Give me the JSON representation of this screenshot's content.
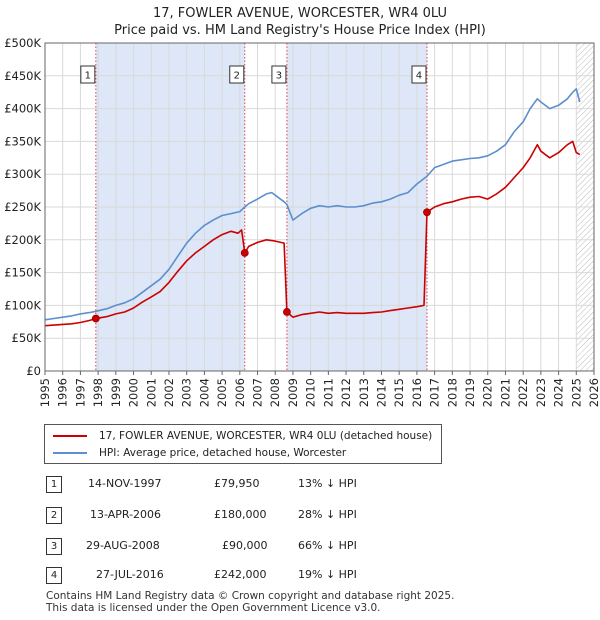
{
  "title_line1": "17, FOWLER AVENUE, WORCESTER, WR4 0LU",
  "title_line2": "Price paid vs. HM Land Registry's House Price Index (HPI)",
  "legend": [
    {
      "label": "17, FOWLER AVENUE, WORCESTER, WR4 0LU (detached house)",
      "color": "#cc0000"
    },
    {
      "label": "HPI: Average price, detached house, Worcester",
      "color": "#5b8fcf"
    }
  ],
  "transactions": [
    {
      "num": "1",
      "date": "14-NOV-1997",
      "price": "£79,950",
      "hpi": "13% ↓ HPI"
    },
    {
      "num": "2",
      "date": "13-APR-2006",
      "price": "£180,000",
      "hpi": "28% ↓ HPI"
    },
    {
      "num": "3",
      "date": "29-AUG-2008",
      "price": "£90,000",
      "hpi": "66% ↓ HPI"
    },
    {
      "num": "4",
      "date": "27-JUL-2016",
      "price": "£242,000",
      "hpi": "19% ↓ HPI"
    }
  ],
  "footer_line1": "Contains HM Land Registry data © Crown copyright and database right 2025.",
  "footer_line2": "This data is licensed under the Open Government Licence v3.0.",
  "chart_data": {
    "type": "line",
    "xlim": [
      1995,
      2026
    ],
    "ylim": [
      0,
      500000
    ],
    "y_ticks": [
      {
        "v": 0,
        "label": "£0"
      },
      {
        "v": 50000,
        "label": "£50K"
      },
      {
        "v": 100000,
        "label": "£100K"
      },
      {
        "v": 150000,
        "label": "£150K"
      },
      {
        "v": 200000,
        "label": "£200K"
      },
      {
        "v": 250000,
        "label": "£250K"
      },
      {
        "v": 300000,
        "label": "£300K"
      },
      {
        "v": 350000,
        "label": "£350K"
      },
      {
        "v": 400000,
        "label": "£400K"
      },
      {
        "v": 450000,
        "label": "£450K"
      },
      {
        "v": 500000,
        "label": "£500K"
      }
    ],
    "x_ticks": [
      "1995",
      "1996",
      "1997",
      "1998",
      "1999",
      "2000",
      "2001",
      "2002",
      "2003",
      "2004",
      "2005",
      "2006",
      "2007",
      "2008",
      "2009",
      "2010",
      "2011",
      "2012",
      "2013",
      "2014",
      "2015",
      "2016",
      "2017",
      "2018",
      "2019",
      "2020",
      "2021",
      "2022",
      "2023",
      "2024",
      "2025",
      "2026"
    ],
    "shaded_periods": [
      [
        1997.87,
        2006.28
      ],
      [
        2008.66,
        2016.57
      ]
    ],
    "future_hatch_start": 2025.0,
    "markers": [
      {
        "label": "1",
        "x": 1997.87,
        "y": 79950
      },
      {
        "label": "2",
        "x": 2006.28,
        "y": 180000
      },
      {
        "label": "3",
        "x": 2008.66,
        "y": 90000
      },
      {
        "label": "4",
        "x": 2016.57,
        "y": 242000
      }
    ],
    "series": [
      {
        "name": "HPI: Average price, detached house, Worcester",
        "color": "#5b8fcf",
        "x": [
          1995.0,
          1995.5,
          1996.0,
          1996.5,
          1997.0,
          1997.5,
          1997.87,
          1998.5,
          1999.0,
          1999.5,
          2000.0,
          2000.5,
          2001.0,
          2001.5,
          2002.0,
          2002.5,
          2003.0,
          2003.5,
          2004.0,
          2004.5,
          2005.0,
          2005.5,
          2006.0,
          2006.28,
          2006.5,
          2007.0,
          2007.5,
          2007.8,
          2008.0,
          2008.5,
          2008.66,
          2009.0,
          2009.5,
          2010.0,
          2010.5,
          2011.0,
          2011.5,
          2012.0,
          2012.5,
          2013.0,
          2013.5,
          2014.0,
          2014.5,
          2015.0,
          2015.5,
          2016.0,
          2016.57,
          2017.0,
          2017.5,
          2018.0,
          2018.5,
          2019.0,
          2019.5,
          2020.0,
          2020.5,
          2021.0,
          2021.5,
          2022.0,
          2022.4,
          2022.8,
          2023.0,
          2023.5,
          2024.0,
          2024.5,
          2024.8,
          2025.0,
          2025.2
        ],
        "y": [
          78000,
          80000,
          82000,
          84000,
          87000,
          89000,
          91000,
          95000,
          100000,
          104000,
          110000,
          120000,
          130000,
          140000,
          155000,
          175000,
          195000,
          210000,
          222000,
          230000,
          237000,
          240000,
          243000,
          250000,
          255000,
          262000,
          270000,
          272000,
          268000,
          258000,
          254000,
          230000,
          240000,
          248000,
          252000,
          250000,
          252000,
          250000,
          250000,
          252000,
          256000,
          258000,
          262000,
          268000,
          272000,
          285000,
          297000,
          310000,
          315000,
          320000,
          322000,
          324000,
          325000,
          328000,
          335000,
          345000,
          365000,
          380000,
          400000,
          415000,
          410000,
          400000,
          405000,
          415000,
          425000,
          430000,
          410000
        ]
      },
      {
        "name": "17, FOWLER AVENUE, WORCESTER, WR4 0LU (detached house)",
        "color": "#cc0000",
        "x": [
          1995.0,
          1995.5,
          1996.0,
          1996.5,
          1997.0,
          1997.5,
          1997.87,
          1998.5,
          1999.0,
          1999.5,
          2000.0,
          2000.5,
          2001.0,
          2001.5,
          2002.0,
          2002.5,
          2003.0,
          2003.5,
          2004.0,
          2004.5,
          2005.0,
          2005.5,
          2005.9,
          2006.1,
          2006.28,
          2006.5,
          2007.0,
          2007.5,
          2008.0,
          2008.5,
          2008.66,
          2009.0,
          2009.5,
          2010.0,
          2010.5,
          2011.0,
          2011.5,
          2012.0,
          2012.5,
          2013.0,
          2013.5,
          2014.0,
          2014.5,
          2015.0,
          2015.5,
          2016.0,
          2016.4,
          2016.57,
          2017.0,
          2017.5,
          2018.0,
          2018.5,
          2019.0,
          2019.5,
          2020.0,
          2020.5,
          2021.0,
          2021.5,
          2022.0,
          2022.4,
          2022.8,
          2023.0,
          2023.5,
          2024.0,
          2024.5,
          2024.8,
          2025.0,
          2025.2
        ],
        "y": [
          69000,
          70000,
          71000,
          72000,
          74000,
          77000,
          79950,
          83000,
          87000,
          90000,
          96000,
          105000,
          113000,
          121000,
          135000,
          152000,
          168000,
          180000,
          190000,
          200000,
          208000,
          213000,
          210000,
          215000,
          180000,
          190000,
          196000,
          200000,
          198000,
          195000,
          90000,
          82000,
          86000,
          88000,
          90000,
          88000,
          89000,
          88000,
          88000,
          88000,
          89000,
          90000,
          92000,
          94000,
          96000,
          98000,
          100000,
          242000,
          250000,
          255000,
          258000,
          262000,
          265000,
          266000,
          262000,
          270000,
          280000,
          295000,
          310000,
          325000,
          345000,
          335000,
          325000,
          333000,
          345000,
          350000,
          333000,
          330000
        ]
      }
    ]
  }
}
